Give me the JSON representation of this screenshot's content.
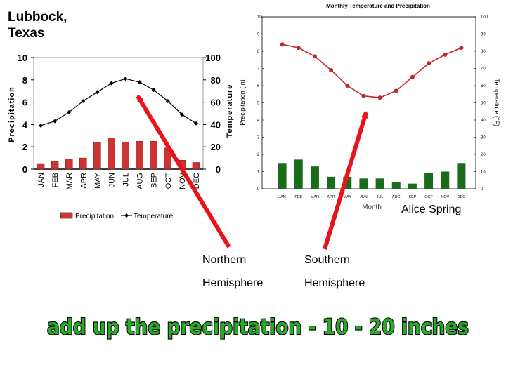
{
  "slide": {
    "left_city": [
      "Lubbock,",
      "Texas"
    ],
    "right_city": "Alice Spring",
    "caption_left": [
      "Northern",
      "Hemisphere"
    ],
    "caption_right": [
      "Southern",
      "Hemisphere"
    ],
    "headline": "add up the precipitation - 10 - 20 inches",
    "colors": {
      "arrow": "#e8141b",
      "headline_fill": "#2aa82a",
      "headline_outline": "#000000"
    }
  },
  "chart_data": [
    {
      "id": "lubbock",
      "type": "bar+line",
      "categories": [
        "JAN",
        "FEB",
        "MAR",
        "APR",
        "MAY",
        "JUN",
        "JUL",
        "AUG",
        "SEP",
        "OCT",
        "NOV",
        "DEC"
      ],
      "series": [
        {
          "name": "Precipitation",
          "type": "bar",
          "axis": "left",
          "color": "#cc3333",
          "values": [
            0.5,
            0.7,
            0.9,
            1.0,
            2.4,
            2.8,
            2.4,
            2.5,
            2.5,
            1.9,
            0.8,
            0.6
          ]
        },
        {
          "name": "Temperature",
          "type": "line",
          "axis": "right",
          "color": "#000000",
          "values": [
            39,
            43,
            51,
            61,
            69,
            77,
            81,
            78,
            71,
            61,
            49,
            41
          ]
        }
      ],
      "ylabel_left": "Precipitation",
      "ylabel_right": "Temperature",
      "ylim_left": [
        0,
        10
      ],
      "ylim_right": [
        0,
        100
      ],
      "yticks_left": [
        "0",
        "2",
        "4",
        "6",
        "8",
        "10"
      ],
      "yticks_right": [
        "0",
        "20",
        "40",
        "60",
        "80",
        "100"
      ],
      "legend": "bottom",
      "grid": false
    },
    {
      "id": "alice_spring",
      "type": "bar+line",
      "title": "Monthly Temperature and Precipitation",
      "categories": [
        "JAN",
        "FEB",
        "MAR",
        "APR",
        "MAY",
        "JUN",
        "JUL",
        "AUG",
        "SEP",
        "OCT",
        "NOV",
        "DEC"
      ],
      "series": [
        {
          "type": "bar",
          "axis": "left",
          "color": "#1a6b1a",
          "values": [
            1.5,
            1.7,
            1.3,
            0.7,
            0.7,
            0.6,
            0.6,
            0.4,
            0.3,
            0.9,
            1.0,
            1.5
          ]
        },
        {
          "type": "line",
          "axis": "right",
          "color": "#c0282a",
          "values": [
            84,
            82,
            77,
            69,
            60,
            54,
            53,
            57,
            65,
            73,
            78,
            82
          ]
        }
      ],
      "xlabel": "Month",
      "ylabel_left": "Precipitation (In)",
      "ylabel_right": "Temperature (°F)",
      "ylim_left": [
        0,
        10
      ],
      "ylim_right": [
        0,
        100
      ],
      "yticks_left": [
        "0",
        "1",
        "2",
        "3",
        "4",
        "5",
        "6",
        "7",
        "8",
        "9",
        "10"
      ],
      "yticks_right": [
        "0",
        "10",
        "20",
        "30",
        "40",
        "50",
        "60",
        "70",
        "80",
        "90",
        "100"
      ],
      "grid": false
    }
  ]
}
